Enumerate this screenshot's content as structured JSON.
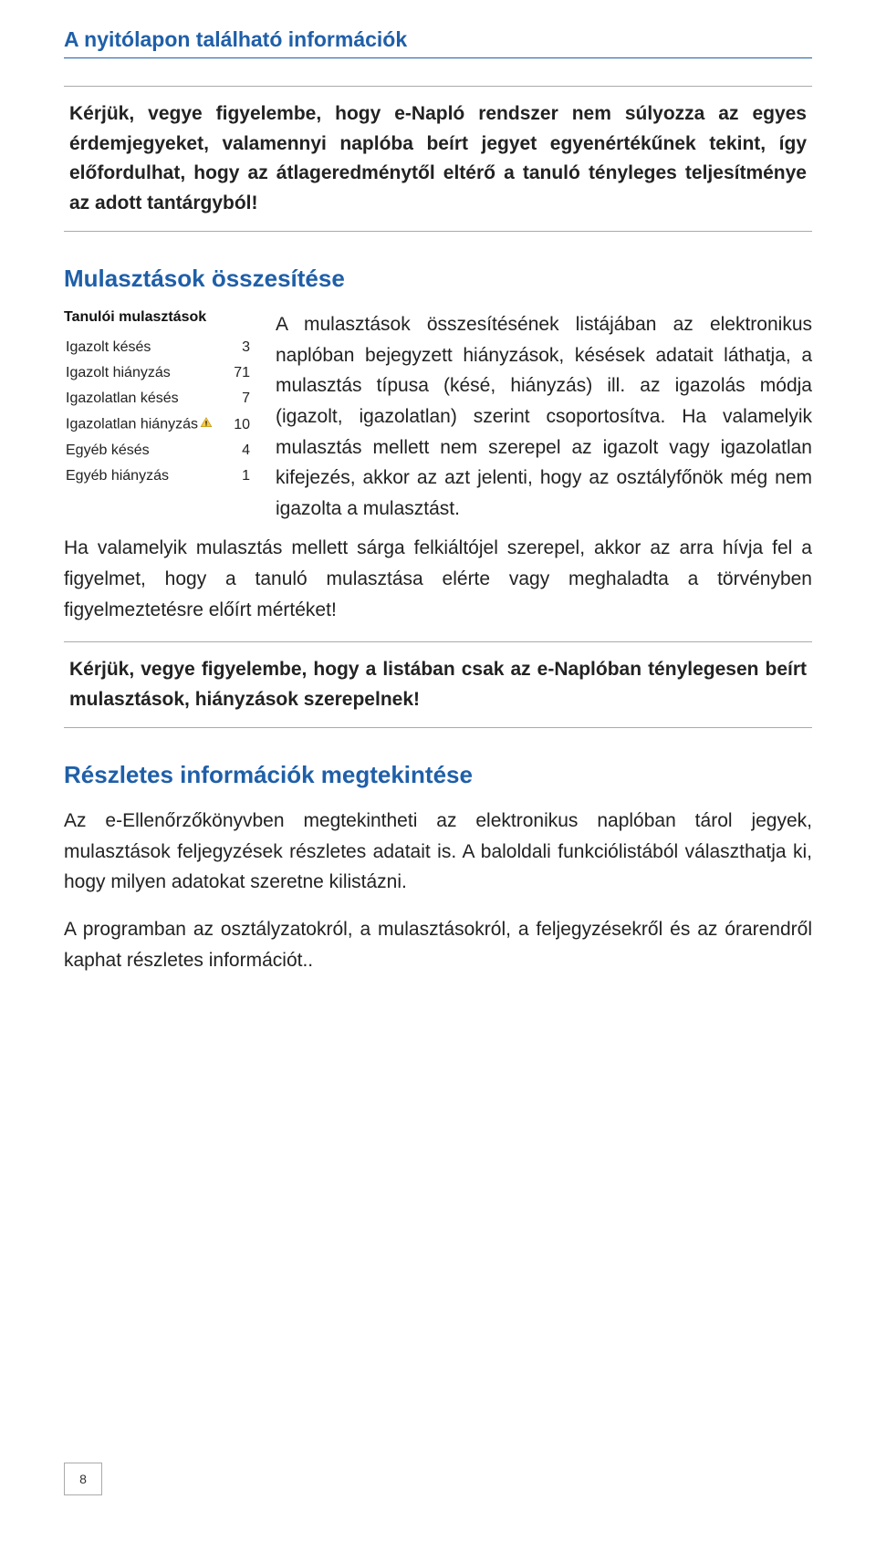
{
  "header": {
    "title": "A nyitólapon található információk"
  },
  "intro_note": {
    "text": "Kérjük, vegye figyelembe, hogy e-Napló rendszer nem súlyozza az egyes érdemjegyeket, valamennyi naplóba beírt jegyet egyenértékűnek tekint, így előfordulhat, hogy az átlageredménytől eltérő a tanuló tényleges teljesítménye az adott tantárgyból!"
  },
  "section_absences": {
    "heading": "Mulasztások összesítése",
    "table_title": "Tanulói mulasztások",
    "rows": [
      {
        "label": "Igazolt késés",
        "value": "3",
        "warn": false
      },
      {
        "label": "Igazolt hiányzás",
        "value": "71",
        "warn": false
      },
      {
        "label": "Igazolatlan késés",
        "value": "7",
        "warn": false
      },
      {
        "label": "Igazolatlan hiányzás",
        "value": "10",
        "warn": true
      },
      {
        "label": "Egyéb késés",
        "value": "4",
        "warn": false
      },
      {
        "label": "Egyéb hiányzás",
        "value": "1",
        "warn": false
      }
    ],
    "para_right": "A mulasztások összesítésének listájában az elektronikus naplóban bejegyzett hiányzások, késések adatait láthatja, a mulasztás típusa (késé, hiányzás) ill. az igazolás módja (igazolt, igazolatlan) szerint csoportosítva. Ha valamelyik mulasztás mellett nem szerepel az igazolt vagy igazolatlan kifejezés, akkor az azt jelenti, hogy az osztályfőnök még nem igazolta a mulasztást.",
    "para_below": "Ha valamelyik mulasztás mellett sárga felkiáltójel szerepel, akkor az arra hívja fel a figyelmet, hogy a tanuló mulasztása elérte vagy meghaladta a törvényben figyelmeztetésre előírt mértéket!"
  },
  "note2": {
    "text": "Kérjük, vegye figyelembe, hogy a listában csak az e-Naplóban ténylegesen beírt mulasztások, hiányzások szerepelnek!"
  },
  "section_details": {
    "heading": "Részletes információk megtekintése",
    "p1": "Az e-Ellenőrzőkönyvben megtekintheti az elektronikus naplóban tárol jegyek, mulasztások feljegyzések részletes adatait is. A baloldali funkciólistából választhatja ki, hogy milyen adatokat szeretne kilistázni.",
    "p2": "A programban az osztályzatokról, a mulasztásokról, a feljegyzésekről és az órarendről  kaphat részletes információt.."
  },
  "page_number": "8",
  "colors": {
    "heading": "#1f5fa9",
    "text": "#222222",
    "border": "#aaaaaa",
    "warn_fill": "#f7c948",
    "warn_stroke": "#b58b00"
  }
}
